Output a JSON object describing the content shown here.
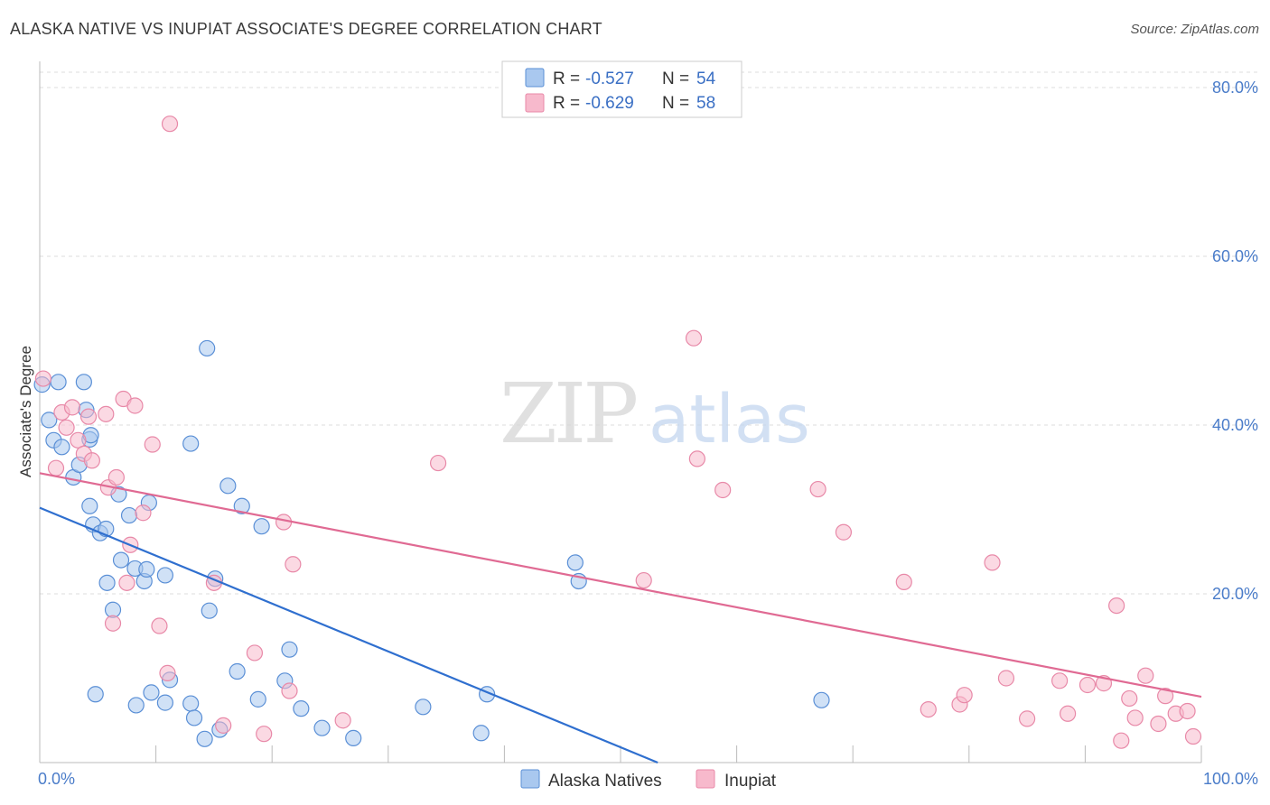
{
  "title": "ALASKA NATIVE VS INUPIAT ASSOCIATE'S DEGREE CORRELATION CHART",
  "source": "Source: ZipAtlas.com",
  "colors": {
    "blue_fill": "#a9c8ef",
    "blue_stroke": "#5a8fd6",
    "blue_line": "#2f6fcf",
    "pink_fill": "#f7b9cc",
    "pink_stroke": "#e889a8",
    "pink_line": "#e06a93",
    "grid": "#dddddd",
    "axis_text": "#4a7cc9"
  },
  "legend": {
    "rows": [
      {
        "r_label": "R =",
        "r_value": "-0.527",
        "n_label": "N =",
        "n_value": "54",
        "color": "blue"
      },
      {
        "r_label": "R =",
        "r_value": "-0.629",
        "n_label": "N =",
        "n_value": "58",
        "color": "pink"
      }
    ]
  },
  "bottom_legend": [
    "Alaska Natives",
    "Inupiat"
  ],
  "watermark": "ZIPatlas",
  "chart_data": {
    "type": "scatter",
    "ylabel": "Associate's Degree",
    "xlim": [
      0,
      100
    ],
    "ylim": [
      0,
      80
    ],
    "x_tick_labels": [
      {
        "value": 0,
        "label": "0.0%"
      },
      {
        "value": 100,
        "label": "100.0%"
      }
    ],
    "y_tick_labels": [
      {
        "value": 20,
        "label": "20.0%"
      },
      {
        "value": 40,
        "label": "40.0%"
      },
      {
        "value": 60,
        "label": "60.0%"
      },
      {
        "value": 80,
        "label": "80.0%"
      }
    ],
    "grid": true,
    "series": [
      {
        "name": "Alaska Natives",
        "color": "blue",
        "trend": {
          "x": [
            0,
            53.2
          ],
          "y": [
            30.2,
            0
          ]
        },
        "points": [
          [
            0.2,
            44.8
          ],
          [
            0.8,
            40.6
          ],
          [
            1.2,
            38.2
          ],
          [
            1.9,
            37.4
          ],
          [
            2.9,
            33.8
          ],
          [
            3.4,
            35.3
          ],
          [
            1.6,
            45.1
          ],
          [
            3.8,
            45.1
          ],
          [
            4.0,
            41.8
          ],
          [
            4.3,
            38.3
          ],
          [
            4.4,
            38.8
          ],
          [
            4.3,
            30.4
          ],
          [
            4.6,
            28.2
          ],
          [
            5.2,
            27.2
          ],
          [
            5.7,
            27.7
          ],
          [
            5.8,
            21.3
          ],
          [
            6.3,
            18.1
          ],
          [
            6.8,
            31.8
          ],
          [
            7.0,
            24.0
          ],
          [
            7.7,
            29.3
          ],
          [
            8.2,
            23.0
          ],
          [
            9.0,
            21.5
          ],
          [
            9.2,
            22.9
          ],
          [
            9.4,
            30.8
          ],
          [
            10.8,
            22.2
          ],
          [
            11.2,
            9.8
          ],
          [
            13.0,
            37.8
          ],
          [
            14.4,
            49.1
          ],
          [
            14.6,
            18.0
          ],
          [
            15.1,
            21.8
          ],
          [
            16.2,
            32.8
          ],
          [
            17.4,
            30.4
          ],
          [
            19.1,
            28.0
          ],
          [
            21.5,
            13.4
          ],
          [
            21.1,
            9.7
          ],
          [
            18.8,
            7.5
          ],
          [
            17.0,
            10.8
          ],
          [
            13.0,
            7.0
          ],
          [
            13.3,
            5.3
          ],
          [
            14.2,
            2.8
          ],
          [
            15.5,
            3.9
          ],
          [
            10.8,
            7.1
          ],
          [
            9.6,
            8.3
          ],
          [
            8.3,
            6.8
          ],
          [
            4.8,
            8.1
          ],
          [
            22.5,
            6.4
          ],
          [
            24.3,
            4.1
          ],
          [
            27.0,
            2.9
          ],
          [
            33.0,
            6.6
          ],
          [
            38.0,
            3.5
          ],
          [
            38.5,
            8.1
          ],
          [
            46.1,
            23.7
          ],
          [
            46.4,
            21.5
          ],
          [
            67.3,
            7.4
          ]
        ]
      },
      {
        "name": "Inupiat",
        "color": "pink",
        "trend": {
          "x": [
            0,
            100
          ],
          "y": [
            34.3,
            7.8
          ]
        },
        "points": [
          [
            0.3,
            45.5
          ],
          [
            1.4,
            34.9
          ],
          [
            1.9,
            41.5
          ],
          [
            2.3,
            39.7
          ],
          [
            2.8,
            42.1
          ],
          [
            3.3,
            38.2
          ],
          [
            3.8,
            36.6
          ],
          [
            4.2,
            41.0
          ],
          [
            4.5,
            35.8
          ],
          [
            5.7,
            41.3
          ],
          [
            5.9,
            32.6
          ],
          [
            6.3,
            16.5
          ],
          [
            6.6,
            33.8
          ],
          [
            7.2,
            43.1
          ],
          [
            7.5,
            21.3
          ],
          [
            7.8,
            25.8
          ],
          [
            8.2,
            42.3
          ],
          [
            8.9,
            29.6
          ],
          [
            9.7,
            37.7
          ],
          [
            10.3,
            16.2
          ],
          [
            11.0,
            10.6
          ],
          [
            11.2,
            75.7
          ],
          [
            15.0,
            21.3
          ],
          [
            15.8,
            4.4
          ],
          [
            18.5,
            13.0
          ],
          [
            19.3,
            3.4
          ],
          [
            21.0,
            28.5
          ],
          [
            21.5,
            8.5
          ],
          [
            21.8,
            23.5
          ],
          [
            26.1,
            5.0
          ],
          [
            34.3,
            35.5
          ],
          [
            52.0,
            21.6
          ],
          [
            56.3,
            50.3
          ],
          [
            56.6,
            36.0
          ],
          [
            58.8,
            32.3
          ],
          [
            67.0,
            32.4
          ],
          [
            69.2,
            27.3
          ],
          [
            74.4,
            21.4
          ],
          [
            76.5,
            6.3
          ],
          [
            79.2,
            6.9
          ],
          [
            79.6,
            8.0
          ],
          [
            82.0,
            23.7
          ],
          [
            83.2,
            10.0
          ],
          [
            85.0,
            5.2
          ],
          [
            87.8,
            9.7
          ],
          [
            88.5,
            5.8
          ],
          [
            90.2,
            9.2
          ],
          [
            91.6,
            9.4
          ],
          [
            92.7,
            18.6
          ],
          [
            93.1,
            2.6
          ],
          [
            93.8,
            7.6
          ],
          [
            94.3,
            5.3
          ],
          [
            95.2,
            10.3
          ],
          [
            96.3,
            4.6
          ],
          [
            96.9,
            7.9
          ],
          [
            97.8,
            5.8
          ],
          [
            98.8,
            6.1
          ],
          [
            99.3,
            3.1
          ]
        ]
      }
    ]
  }
}
